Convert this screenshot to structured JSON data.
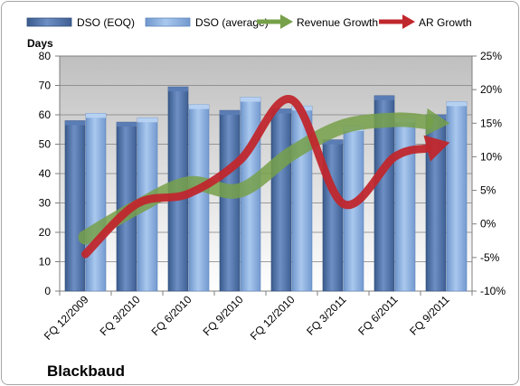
{
  "chart_data": {
    "type": "bar",
    "title": "Blackbaud",
    "ylabel": "Days",
    "ylim": [
      0,
      80
    ],
    "y_ticks": [
      "0",
      "10",
      "20",
      "30",
      "40",
      "50",
      "60",
      "70",
      "80"
    ],
    "y2lim": [
      -10,
      25
    ],
    "y2_ticks": [
      "-10%",
      "-5%",
      "0%",
      "5%",
      "10%",
      "15%",
      "20%",
      "25%"
    ],
    "categories": [
      "FQ 12/2009",
      "FQ 3/2010",
      "FQ 6/2010",
      "FQ 9/2010",
      "FQ 12/2010",
      "FQ 3/2011",
      "FQ 6/2011",
      "FQ 9/2011"
    ],
    "series": [
      {
        "name": "DSO (EOQ)",
        "kind": "bar",
        "axis": "left",
        "color": "#4f6fa3",
        "values": [
          58,
          57.5,
          69.5,
          61.5,
          62,
          51.5,
          66.5,
          60
        ]
      },
      {
        "name": "DSO (average)",
        "kind": "bar",
        "axis": "left",
        "color": "#8eb4e3",
        "values": [
          60.5,
          59,
          63.5,
          66,
          63,
          56,
          59,
          64.5
        ]
      },
      {
        "name": "Revenue Growth",
        "kind": "line-arrow",
        "axis": "right",
        "color": "#77a04a",
        "values": [
          -2,
          2.5,
          6,
          5,
          10.5,
          14.5,
          15.5,
          15
        ]
      },
      {
        "name": "AR Growth",
        "kind": "line-arrow",
        "axis": "right",
        "color": "#c0272d",
        "values": [
          -4.5,
          3,
          4.5,
          9.5,
          18.5,
          3,
          10,
          12
        ]
      }
    ],
    "grid": true,
    "legend": "top"
  }
}
